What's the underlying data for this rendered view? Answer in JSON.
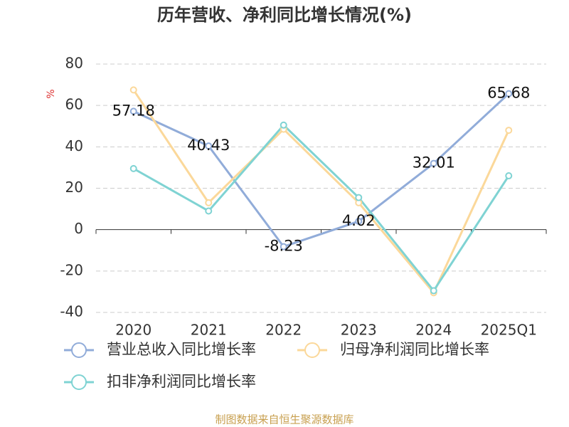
{
  "chart_data": {
    "type": "line",
    "title": "历年营收、净利同比增长情况(%)",
    "y_label": "%",
    "categories": [
      "2020",
      "2021",
      "2022",
      "2023",
      "2024",
      "2025Q1"
    ],
    "series": [
      {
        "name": "营业总收入同比增长率",
        "color": "#91acd9",
        "values": [
          57.18,
          40.43,
          -8.23,
          4.02,
          32.01,
          65.68
        ],
        "show_labels": true
      },
      {
        "name": "归母净利润同比增长率",
        "color": "#fbd89a",
        "values": [
          67.5,
          13,
          48.5,
          13,
          -30.5,
          48
        ]
      },
      {
        "name": "扣非净利润同比增长率",
        "color": "#7fd3d3",
        "values": [
          29.5,
          9,
          50.5,
          15.5,
          -29.5,
          26
        ]
      }
    ],
    "ylim": [
      -40,
      80
    ],
    "yticks": [
      -40,
      -20,
      0,
      20,
      40,
      60,
      80
    ],
    "grid": true,
    "source": "制图数据来自恒生聚源数据库"
  }
}
